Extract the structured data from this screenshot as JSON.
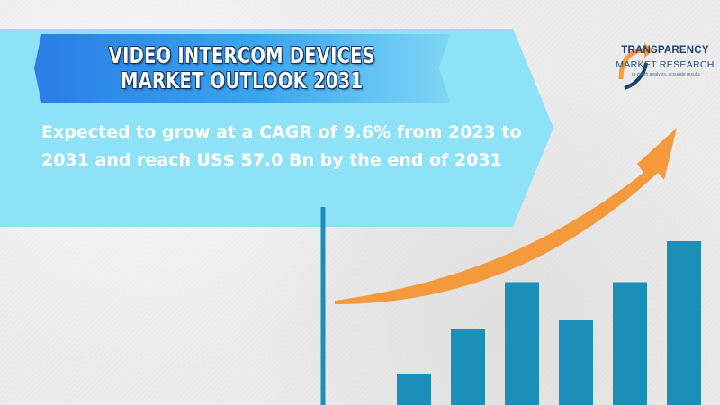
{
  "title": {
    "line1": "VIDEO INTERCOM DEVICES",
    "line2": "MARKET OUTLOOK 2031"
  },
  "description": "Expected to grow at a CAGR of 9.6% from 2023 to 2031 and reach US$ 57.0 Bn by the end of 2031",
  "logo": {
    "line1": "TRANSPARENCY",
    "line2": "MARKET RESEARCH",
    "tagline": "in-depth analysis, accurate results",
    "icon": "tmr-arrow-logo-icon"
  },
  "colors": {
    "banner": "#8ee2f7",
    "title_gradient_start": "#2a7de6",
    "bars": "#1b8fb8",
    "axis_line": "#1b8fb8",
    "arrow": "#f59a3c"
  },
  "chart_data": {
    "type": "bar",
    "values": [
      1.0,
      2.4,
      3.9,
      2.7,
      3.9,
      5.2
    ],
    "trend": "upward-arrow"
  }
}
